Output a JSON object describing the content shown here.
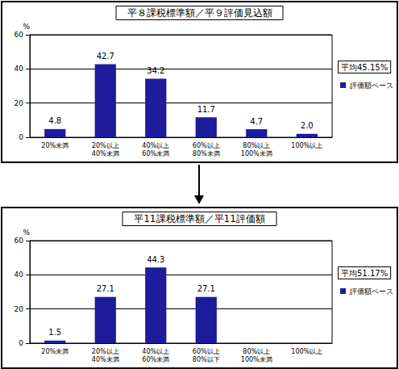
{
  "chart_data": [
    {
      "type": "bar",
      "title": "平８課税標準額／平９評価見込額",
      "categories": [
        "20%未満",
        "20%以上\n40%未満",
        "40%以上\n60%未満",
        "60%以上\n80%未満",
        "80%以上\n100%未満",
        "100%以上"
      ],
      "series": [
        {
          "name": "評価額ベース",
          "color": "#1c1c9c",
          "values": [
            4.8,
            42.7,
            34.2,
            11.7,
            4.7,
            2.0
          ],
          "value_labels": [
            "4.8",
            "42.7",
            "34.2",
            "11.7",
            "4.7",
            "2.0"
          ]
        }
      ],
      "ylabel": "%",
      "ylim": [
        0,
        60
      ],
      "yticks": [
        0,
        20,
        40,
        60
      ],
      "grid": true,
      "data_labels": true,
      "annotation": "平均45.15%",
      "legend": "right"
    },
    {
      "type": "bar",
      "title": "平11課税標準額／平11評価額",
      "categories": [
        "20%未満",
        "20%以上\n40%未満",
        "40%以上\n60%未満",
        "60%以上\n80%以下",
        "80%以上\n100%未満",
        "100%以上"
      ],
      "series": [
        {
          "name": "評価額ベース",
          "color": "#1c1c9c",
          "values": [
            1.5,
            27.1,
            44.3,
            27.1,
            null,
            null
          ]
        }
      ],
      "ylabel": "%",
      "ylim": [
        0,
        60
      ],
      "yticks": [
        0,
        20,
        40,
        60
      ],
      "grid": true,
      "data_labels": true,
      "annotation": "平均51.17%",
      "legend": "right"
    }
  ]
}
